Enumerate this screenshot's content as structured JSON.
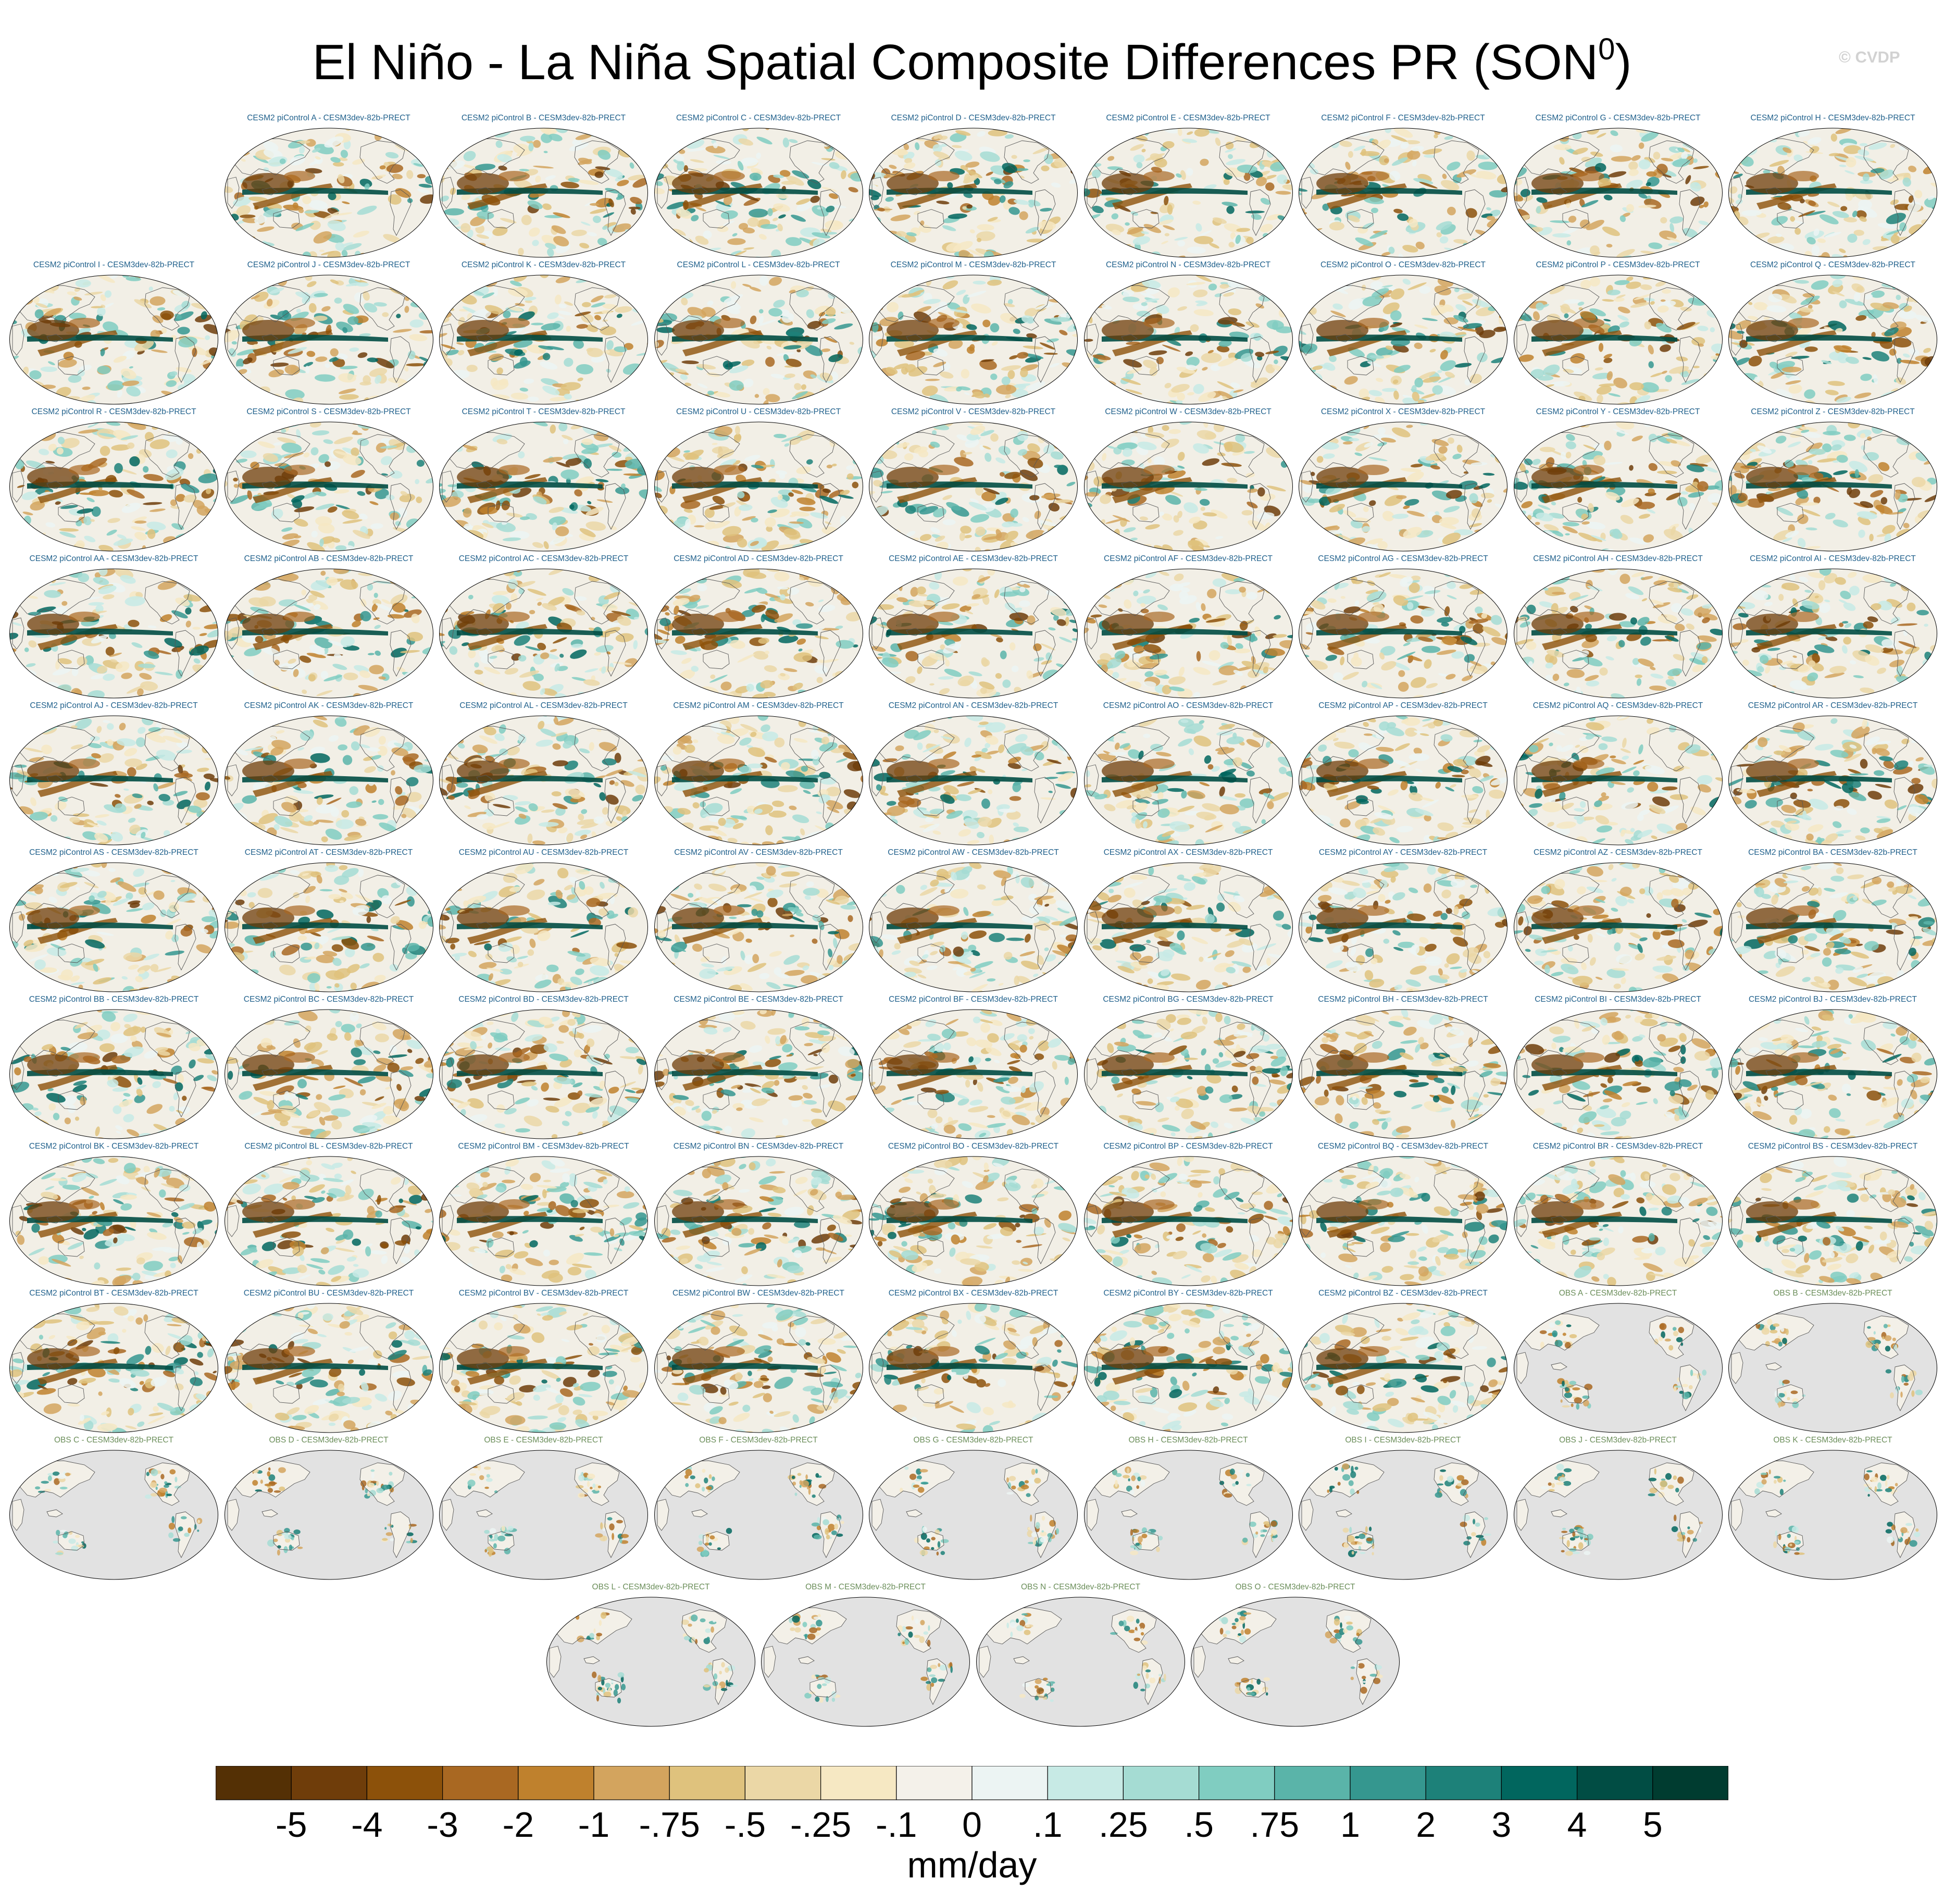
{
  "title": "El Niño - La Niña Spatial Composite Differences PR (SON",
  "title_sup": "0",
  "title_end": ")",
  "watermark": "© CVDP",
  "chart_data": {
    "type": "heatmap",
    "title": "El Niño - La Niña Spatial Composite Differences PR (SON0)",
    "variable": "PR",
    "season": "SON0",
    "units": "mm/day",
    "panels": [
      {
        "label": "CESM2 piControl A - CESM3dev-82b-PRECT",
        "kind": "model"
      },
      {
        "label": "CESM2 piControl B - CESM3dev-82b-PRECT",
        "kind": "model"
      },
      {
        "label": "CESM2 piControl C - CESM3dev-82b-PRECT",
        "kind": "model"
      },
      {
        "label": "CESM2 piControl D - CESM3dev-82b-PRECT",
        "kind": "model"
      },
      {
        "label": "CESM2 piControl E - CESM3dev-82b-PRECT",
        "kind": "model"
      },
      {
        "label": "CESM2 piControl F - CESM3dev-82b-PRECT",
        "kind": "model"
      },
      {
        "label": "CESM2 piControl G - CESM3dev-82b-PRECT",
        "kind": "model"
      },
      {
        "label": "CESM2 piControl H - CESM3dev-82b-PRECT",
        "kind": "model"
      },
      {
        "label": "CESM2 piControl I - CESM3dev-82b-PRECT",
        "kind": "model"
      },
      {
        "label": "CESM2 piControl J - CESM3dev-82b-PRECT",
        "kind": "model"
      },
      {
        "label": "CESM2 piControl K - CESM3dev-82b-PRECT",
        "kind": "model"
      },
      {
        "label": "CESM2 piControl L - CESM3dev-82b-PRECT",
        "kind": "model"
      },
      {
        "label": "CESM2 piControl M - CESM3dev-82b-PRECT",
        "kind": "model"
      },
      {
        "label": "CESM2 piControl N - CESM3dev-82b-PRECT",
        "kind": "model"
      },
      {
        "label": "CESM2 piControl O - CESM3dev-82b-PRECT",
        "kind": "model"
      },
      {
        "label": "CESM2 piControl P - CESM3dev-82b-PRECT",
        "kind": "model"
      },
      {
        "label": "CESM2 piControl Q - CESM3dev-82b-PRECT",
        "kind": "model"
      },
      {
        "label": "CESM2 piControl R - CESM3dev-82b-PRECT",
        "kind": "model"
      },
      {
        "label": "CESM2 piControl S - CESM3dev-82b-PRECT",
        "kind": "model"
      },
      {
        "label": "CESM2 piControl T - CESM3dev-82b-PRECT",
        "kind": "model"
      },
      {
        "label": "CESM2 piControl U - CESM3dev-82b-PRECT",
        "kind": "model"
      },
      {
        "label": "CESM2 piControl V - CESM3dev-82b-PRECT",
        "kind": "model"
      },
      {
        "label": "CESM2 piControl W - CESM3dev-82b-PRECT",
        "kind": "model"
      },
      {
        "label": "CESM2 piControl X - CESM3dev-82b-PRECT",
        "kind": "model"
      },
      {
        "label": "CESM2 piControl Y - CESM3dev-82b-PRECT",
        "kind": "model"
      },
      {
        "label": "CESM2 piControl Z - CESM3dev-82b-PRECT",
        "kind": "model"
      },
      {
        "label": "CESM2 piControl AA - CESM3dev-82b-PRECT",
        "kind": "model"
      },
      {
        "label": "CESM2 piControl AB - CESM3dev-82b-PRECT",
        "kind": "model"
      },
      {
        "label": "CESM2 piControl AC - CESM3dev-82b-PRECT",
        "kind": "model"
      },
      {
        "label": "CESM2 piControl AD - CESM3dev-82b-PRECT",
        "kind": "model"
      },
      {
        "label": "CESM2 piControl AE - CESM3dev-82b-PRECT",
        "kind": "model"
      },
      {
        "label": "CESM2 piControl AF - CESM3dev-82b-PRECT",
        "kind": "model"
      },
      {
        "label": "CESM2 piControl AG - CESM3dev-82b-PRECT",
        "kind": "model"
      },
      {
        "label": "CESM2 piControl AH - CESM3dev-82b-PRECT",
        "kind": "model"
      },
      {
        "label": "CESM2 piControl AI - CESM3dev-82b-PRECT",
        "kind": "model"
      },
      {
        "label": "CESM2 piControl AJ - CESM3dev-82b-PRECT",
        "kind": "model"
      },
      {
        "label": "CESM2 piControl AK - CESM3dev-82b-PRECT",
        "kind": "model"
      },
      {
        "label": "CESM2 piControl AL - CESM3dev-82b-PRECT",
        "kind": "model"
      },
      {
        "label": "CESM2 piControl AM - CESM3dev-82b-PRECT",
        "kind": "model"
      },
      {
        "label": "CESM2 piControl AN - CESM3dev-82b-PRECT",
        "kind": "model"
      },
      {
        "label": "CESM2 piControl AO - CESM3dev-82b-PRECT",
        "kind": "model"
      },
      {
        "label": "CESM2 piControl AP - CESM3dev-82b-PRECT",
        "kind": "model"
      },
      {
        "label": "CESM2 piControl AQ - CESM3dev-82b-PRECT",
        "kind": "model"
      },
      {
        "label": "CESM2 piControl AR - CESM3dev-82b-PRECT",
        "kind": "model"
      },
      {
        "label": "CESM2 piControl AS - CESM3dev-82b-PRECT",
        "kind": "model"
      },
      {
        "label": "CESM2 piControl AT - CESM3dev-82b-PRECT",
        "kind": "model"
      },
      {
        "label": "CESM2 piControl AU - CESM3dev-82b-PRECT",
        "kind": "model"
      },
      {
        "label": "CESM2 piControl AV - CESM3dev-82b-PRECT",
        "kind": "model"
      },
      {
        "label": "CESM2 piControl AW - CESM3dev-82b-PRECT",
        "kind": "model"
      },
      {
        "label": "CESM2 piControl AX - CESM3dev-82b-PRECT",
        "kind": "model"
      },
      {
        "label": "CESM2 piControl AY - CESM3dev-82b-PRECT",
        "kind": "model"
      },
      {
        "label": "CESM2 piControl AZ - CESM3dev-82b-PRECT",
        "kind": "model"
      },
      {
        "label": "CESM2 piControl BA - CESM3dev-82b-PRECT",
        "kind": "model"
      },
      {
        "label": "CESM2 piControl BB - CESM3dev-82b-PRECT",
        "kind": "model"
      },
      {
        "label": "CESM2 piControl BC - CESM3dev-82b-PRECT",
        "kind": "model"
      },
      {
        "label": "CESM2 piControl BD - CESM3dev-82b-PRECT",
        "kind": "model"
      },
      {
        "label": "CESM2 piControl BE - CESM3dev-82b-PRECT",
        "kind": "model"
      },
      {
        "label": "CESM2 piControl BF - CESM3dev-82b-PRECT",
        "kind": "model"
      },
      {
        "label": "CESM2 piControl BG - CESM3dev-82b-PRECT",
        "kind": "model"
      },
      {
        "label": "CESM2 piControl BH - CESM3dev-82b-PRECT",
        "kind": "model"
      },
      {
        "label": "CESM2 piControl BI - CESM3dev-82b-PRECT",
        "kind": "model"
      },
      {
        "label": "CESM2 piControl BJ - CESM3dev-82b-PRECT",
        "kind": "model"
      },
      {
        "label": "CESM2 piControl BK - CESM3dev-82b-PRECT",
        "kind": "model"
      },
      {
        "label": "CESM2 piControl BL - CESM3dev-82b-PRECT",
        "kind": "model"
      },
      {
        "label": "CESM2 piControl BM - CESM3dev-82b-PRECT",
        "kind": "model"
      },
      {
        "label": "CESM2 piControl BN - CESM3dev-82b-PRECT",
        "kind": "model"
      },
      {
        "label": "CESM2 piControl BO - CESM3dev-82b-PRECT",
        "kind": "model"
      },
      {
        "label": "CESM2 piControl BP - CESM3dev-82b-PRECT",
        "kind": "model"
      },
      {
        "label": "CESM2 piControl BQ - CESM3dev-82b-PRECT",
        "kind": "model"
      },
      {
        "label": "CESM2 piControl BR - CESM3dev-82b-PRECT",
        "kind": "model"
      },
      {
        "label": "CESM2 piControl BS - CESM3dev-82b-PRECT",
        "kind": "model"
      },
      {
        "label": "CESM2 piControl BT - CESM3dev-82b-PRECT",
        "kind": "model"
      },
      {
        "label": "CESM2 piControl BU - CESM3dev-82b-PRECT",
        "kind": "model"
      },
      {
        "label": "CESM2 piControl BV - CESM3dev-82b-PRECT",
        "kind": "model"
      },
      {
        "label": "CESM2 piControl BW - CESM3dev-82b-PRECT",
        "kind": "model"
      },
      {
        "label": "CESM2 piControl BX - CESM3dev-82b-PRECT",
        "kind": "model"
      },
      {
        "label": "CESM2 piControl BY - CESM3dev-82b-PRECT",
        "kind": "model"
      },
      {
        "label": "CESM2 piControl BZ - CESM3dev-82b-PRECT",
        "kind": "model"
      },
      {
        "label": "OBS A - CESM3dev-82b-PRECT",
        "kind": "obs"
      },
      {
        "label": "OBS B - CESM3dev-82b-PRECT",
        "kind": "obs"
      },
      {
        "label": "OBS C - CESM3dev-82b-PRECT",
        "kind": "obs"
      },
      {
        "label": "OBS D - CESM3dev-82b-PRECT",
        "kind": "obs"
      },
      {
        "label": "OBS E - CESM3dev-82b-PRECT",
        "kind": "obs"
      },
      {
        "label": "OBS F - CESM3dev-82b-PRECT",
        "kind": "obs"
      },
      {
        "label": "OBS G - CESM3dev-82b-PRECT",
        "kind": "obs"
      },
      {
        "label": "OBS H - CESM3dev-82b-PRECT",
        "kind": "obs"
      },
      {
        "label": "OBS I - CESM3dev-82b-PRECT",
        "kind": "obs"
      },
      {
        "label": "OBS J - CESM3dev-82b-PRECT",
        "kind": "obs"
      },
      {
        "label": "OBS K - CESM3dev-82b-PRECT",
        "kind": "obs"
      },
      {
        "label": "OBS L - CESM3dev-82b-PRECT",
        "kind": "obs"
      },
      {
        "label": "OBS M - CESM3dev-82b-PRECT",
        "kind": "obs"
      },
      {
        "label": "OBS N - CESM3dev-82b-PRECT",
        "kind": "obs"
      },
      {
        "label": "OBS O - CESM3dev-82b-PRECT",
        "kind": "obs"
      }
    ],
    "colorbar": {
      "levels": [
        "-5",
        "-4",
        "-3",
        "-2",
        "-1",
        "-.75",
        "-.5",
        "-.25",
        "-.1",
        "0",
        ".1",
        ".25",
        ".5",
        ".75",
        "1",
        "2",
        "3",
        "4",
        "5"
      ],
      "colors": [
        "#543005",
        "#6f3d0a",
        "#8c510a",
        "#a96822",
        "#bf812d",
        "#d3a45e",
        "#dfc27d",
        "#ebd7a6",
        "#f6e8c3",
        "#f4f1ea",
        "#ecf4f3",
        "#c7eae5",
        "#a5dcd3",
        "#80cdc1",
        "#5ab4a9",
        "#35978f",
        "#1d8179",
        "#01665e",
        "#014d44",
        "#003c30"
      ],
      "units_label": "mm/day"
    }
  },
  "colors": {
    "model_label": "#21618c",
    "obs_label": "#6b8e5a",
    "missing_land_bg": "#e2e2e2",
    "coastline": "#555555"
  }
}
